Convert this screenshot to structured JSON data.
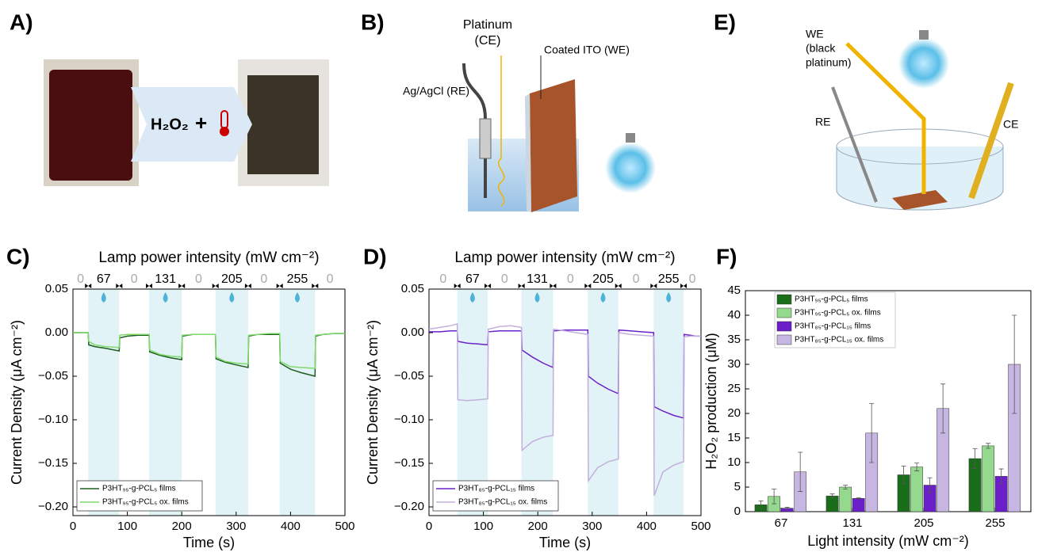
{
  "figure": {
    "panel_letters": [
      "A)",
      "B)",
      "E)",
      "C)",
      "D)",
      "F)"
    ],
    "panel_a": {
      "reagent": "H₂O₂",
      "plus": "+"
    },
    "panel_b": {
      "platinum": "Platinum",
      "ce": "(CE)",
      "ito": "Coated ITO (WE)",
      "ref": "Ag/AgCl (RE)"
    },
    "panel_e": {
      "we_lines": [
        "WE",
        "(black",
        "platinum)"
      ],
      "re": "RE",
      "ce": "CE"
    }
  },
  "chart_data": [
    {
      "type": "line",
      "title": "Lamp power intensity (mW cm⁻²)",
      "xlabel": "Time (s)",
      "ylabel": "Current Density (μA cm⁻²)",
      "intensity_labels": [
        "0",
        "67",
        "0",
        "131",
        "0",
        "205",
        "0",
        "255",
        "0"
      ],
      "light_on": [
        [
          28,
          85
        ],
        [
          140,
          200
        ],
        [
          262,
          322
        ],
        [
          380,
          445
        ]
      ],
      "x": [
        0,
        10,
        20,
        28,
        29,
        40,
        60,
        85,
        86,
        100,
        120,
        140,
        141,
        160,
        180,
        200,
        201,
        220,
        240,
        262,
        263,
        280,
        300,
        322,
        323,
        340,
        360,
        380,
        381,
        400,
        420,
        445,
        446,
        460,
        480,
        500
      ],
      "series": [
        {
          "name": "P3HT₉₅-g-PCL₅ films",
          "color": "#1d5e1d",
          "values": [
            0,
            0,
            0,
            0,
            -0.014,
            -0.016,
            -0.018,
            -0.021,
            -0.006,
            -0.004,
            -0.003,
            -0.003,
            -0.022,
            -0.026,
            -0.029,
            -0.031,
            -0.004,
            -0.002,
            -0.002,
            -0.002,
            -0.03,
            -0.034,
            -0.037,
            -0.04,
            -0.004,
            -0.002,
            -0.002,
            -0.002,
            -0.035,
            -0.042,
            -0.046,
            -0.05,
            -0.004,
            -0.002,
            -0.001,
            -0.001
          ]
        },
        {
          "name": "P3HT₉₅-g-PCL₅ ox. films",
          "color": "#7fd96a",
          "values": [
            0,
            0,
            0,
            0,
            -0.01,
            -0.014,
            -0.016,
            -0.017,
            -0.003,
            -0.002,
            -0.002,
            -0.002,
            -0.02,
            -0.025,
            -0.027,
            -0.028,
            -0.003,
            -0.002,
            -0.002,
            -0.002,
            -0.028,
            -0.033,
            -0.035,
            -0.036,
            -0.003,
            -0.002,
            -0.001,
            -0.001,
            -0.033,
            -0.039,
            -0.04,
            -0.041,
            -0.003,
            -0.002,
            -0.001,
            -0.001
          ]
        }
      ],
      "xlim": [
        0,
        500
      ],
      "xticks": [
        0,
        100,
        200,
        300,
        400,
        500
      ],
      "ylim": [
        -0.21,
        0.05
      ],
      "yticks": [
        0.05,
        {
          "value": 0,
          "label": "0.00"
        },
        {
          "value": -0.05,
          "label": "−0.05"
        },
        {
          "value": -0.1,
          "label": "−0.10"
        },
        {
          "value": -0.15,
          "label": "−0.15"
        },
        {
          "value": -0.2,
          "label": "−0.20"
        }
      ],
      "legend": "lower left"
    },
    {
      "type": "line",
      "title": "Lamp power intensity (mW cm⁻²)",
      "xlabel": "Time (s)",
      "ylabel": "Current Density (μA cm⁻²)",
      "intensity_labels": [
        "0",
        "67",
        "0",
        "131",
        "0",
        "205",
        "0",
        "255",
        "0"
      ],
      "light_on": [
        [
          52,
          108
        ],
        [
          170,
          228
        ],
        [
          292,
          348
        ],
        [
          413,
          468
        ]
      ],
      "x": [
        0,
        20,
        40,
        52,
        53,
        70,
        90,
        108,
        109,
        130,
        150,
        170,
        171,
        190,
        210,
        228,
        229,
        250,
        270,
        292,
        293,
        310,
        330,
        348,
        349,
        370,
        390,
        413,
        414,
        430,
        450,
        468,
        469,
        480,
        490,
        500
      ],
      "series": [
        {
          "name": "P3HT₈₅-g-PCL₁₅ films",
          "color": "#6a22c9",
          "values": [
            0.001,
            0.001,
            0.002,
            0.002,
            -0.01,
            -0.012,
            -0.013,
            -0.014,
            0.001,
            0.002,
            0.002,
            0.002,
            -0.02,
            -0.028,
            -0.035,
            -0.04,
            0.002,
            0.003,
            0.003,
            0.003,
            -0.05,
            -0.058,
            -0.065,
            -0.07,
            0.003,
            0.002,
            0.001,
            0,
            -0.085,
            -0.09,
            -0.095,
            -0.098,
            -0.002,
            -0.003,
            -0.004,
            -0.004
          ]
        },
        {
          "name": "P3HT₈₅-g-PCL₁₅ ox. films",
          "color": "#c2b0dc",
          "values": [
            0.004,
            0.006,
            0.008,
            0.01,
            -0.077,
            -0.078,
            -0.077,
            -0.076,
            0.004,
            0.007,
            0.008,
            0.006,
            -0.135,
            -0.125,
            -0.12,
            -0.118,
            0.004,
            0.002,
            0,
            -0.002,
            -0.17,
            -0.155,
            -0.148,
            -0.145,
            0,
            -0.002,
            -0.003,
            -0.004,
            -0.187,
            -0.16,
            -0.152,
            -0.148,
            -0.005,
            -0.004,
            -0.004,
            -0.004
          ]
        }
      ],
      "xlim": [
        0,
        500
      ],
      "xticks": [
        0,
        100,
        200,
        300,
        400,
        500
      ],
      "ylim": [
        -0.21,
        0.05
      ],
      "yticks": [
        0.05,
        {
          "value": 0,
          "label": "0.00"
        },
        {
          "value": -0.05,
          "label": "−0.05"
        },
        {
          "value": -0.1,
          "label": "−0.10"
        },
        {
          "value": -0.15,
          "label": "−0.15"
        },
        {
          "value": -0.2,
          "label": "−0.20"
        }
      ],
      "legend": "lower left"
    },
    {
      "type": "bar",
      "xlabel": "Light intensity (mW cm⁻²)",
      "ylabel": "H₂O₂ production (μM)",
      "categories": [
        "67",
        "131",
        "205",
        "255"
      ],
      "series": [
        {
          "name": "P3HT₉₅-g-PCL₅ films",
          "color": "#1a6e1a",
          "values": [
            1.4,
            3.2,
            7.5,
            10.8
          ],
          "errors": [
            0.8,
            0.4,
            1.8,
            2.0
          ]
        },
        {
          "name": "P3HT₉₅-g-PCL₅ ox. films",
          "color": "#94d98e",
          "values": [
            3.1,
            5.0,
            9.1,
            13.4
          ],
          "errors": [
            1.5,
            0.4,
            0.8,
            0.5
          ]
        },
        {
          "name": "P3HT₈₅-g-PCL₁₅ films",
          "color": "#6a1fc8",
          "values": [
            0.7,
            2.7,
            5.4,
            7.2
          ],
          "errors": [
            0.2,
            0.1,
            1.5,
            1.5
          ]
        },
        {
          "name": "P3HT₈₅-g-PCL₁₅ ox. films",
          "color": "#c8b6e2",
          "values": [
            8.1,
            16,
            21,
            30
          ],
          "errors": [
            4,
            6,
            5,
            10
          ]
        }
      ],
      "ylim": [
        0,
        45
      ],
      "yticks": [
        0,
        5,
        10,
        15,
        20,
        25,
        30,
        35,
        40,
        45
      ],
      "legend": "upper left"
    }
  ]
}
